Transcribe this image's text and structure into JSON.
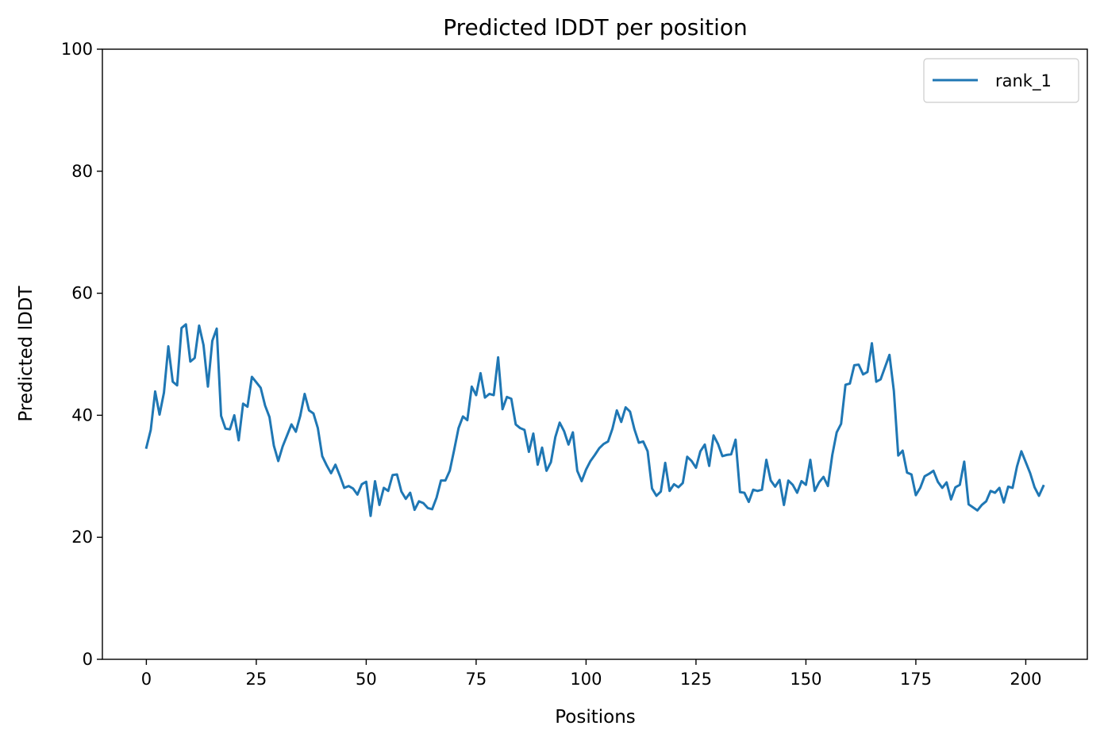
{
  "chart_data": {
    "type": "line",
    "title": "Predicted lDDT per position",
    "xlabel": "Positions",
    "ylabel": "Predicted lDDT",
    "xlim": [
      -10,
      214
    ],
    "ylim": [
      0,
      100
    ],
    "xticks": [
      0,
      25,
      50,
      75,
      100,
      125,
      150,
      175,
      200
    ],
    "yticks": [
      0,
      20,
      40,
      60,
      80,
      100
    ],
    "grid": false,
    "legend": "top-right",
    "series": [
      {
        "name": "rank_1",
        "color": "#1f77b4",
        "values": [
          34.7,
          37.6,
          43.9,
          40.1,
          43.7,
          51.3,
          45.5,
          44.9,
          54.3,
          54.9,
          48.8,
          49.4,
          54.7,
          51.5,
          44.7,
          52.2,
          54.2,
          39.9,
          37.8,
          37.7,
          40.0,
          35.9,
          41.9,
          41.4,
          46.3,
          45.4,
          44.5,
          41.6,
          39.7,
          35.0,
          32.5,
          34.9,
          36.7,
          38.5,
          37.3,
          39.9,
          43.5,
          40.8,
          40.3,
          37.9,
          33.3,
          31.8,
          30.5,
          31.9,
          30.1,
          28.1,
          28.4,
          28.0,
          27.0,
          28.7,
          29.1,
          23.5,
          29.2,
          25.3,
          28.1,
          27.6,
          30.2,
          30.3,
          27.5,
          26.3,
          27.3,
          24.5,
          25.9,
          25.6,
          24.8,
          24.6,
          26.5,
          29.3,
          29.3,
          30.9,
          34.3,
          37.9,
          39.8,
          39.2,
          44.7,
          43.3,
          46.9,
          42.9,
          43.5,
          43.3,
          49.5,
          41.0,
          43.0,
          42.7,
          38.5,
          37.9,
          37.6,
          34.0,
          37.0,
          31.9,
          34.7,
          30.9,
          32.3,
          36.4,
          38.8,
          37.4,
          35.2,
          37.2,
          30.9,
          29.2,
          31.1,
          32.5,
          33.5,
          34.6,
          35.3,
          35.7,
          37.8,
          40.8,
          38.9,
          41.3,
          40.6,
          37.7,
          35.5,
          35.7,
          34.1,
          28.0,
          26.8,
          27.5,
          32.2,
          27.6,
          28.7,
          28.2,
          28.9,
          33.2,
          32.5,
          31.4,
          34.1,
          35.2,
          31.7,
          36.7,
          35.3,
          33.3,
          33.5,
          33.6,
          36.0,
          27.4,
          27.3,
          25.8,
          27.8,
          27.6,
          27.8,
          32.7,
          29.3,
          28.3,
          29.4,
          25.3,
          29.3,
          28.6,
          27.3,
          29.2,
          28.6,
          32.7,
          27.6,
          29.0,
          29.9,
          28.4,
          33.5,
          37.2,
          38.6,
          45.0,
          45.2,
          48.2,
          48.3,
          46.7,
          47.1,
          51.8,
          45.5,
          45.9,
          47.9,
          49.9,
          44.0,
          33.4,
          34.2,
          30.6,
          30.3,
          26.9,
          28.1,
          30.0,
          30.4,
          30.9,
          29.1,
          28.1,
          29.0,
          26.2,
          28.2,
          28.6,
          32.4,
          25.4,
          24.9,
          24.4,
          25.3,
          25.9,
          27.6,
          27.3,
          28.1,
          25.7,
          28.3,
          28.1,
          31.6,
          34.1,
          32.3,
          30.5,
          28.2,
          26.8,
          28.4
        ]
      }
    ]
  }
}
